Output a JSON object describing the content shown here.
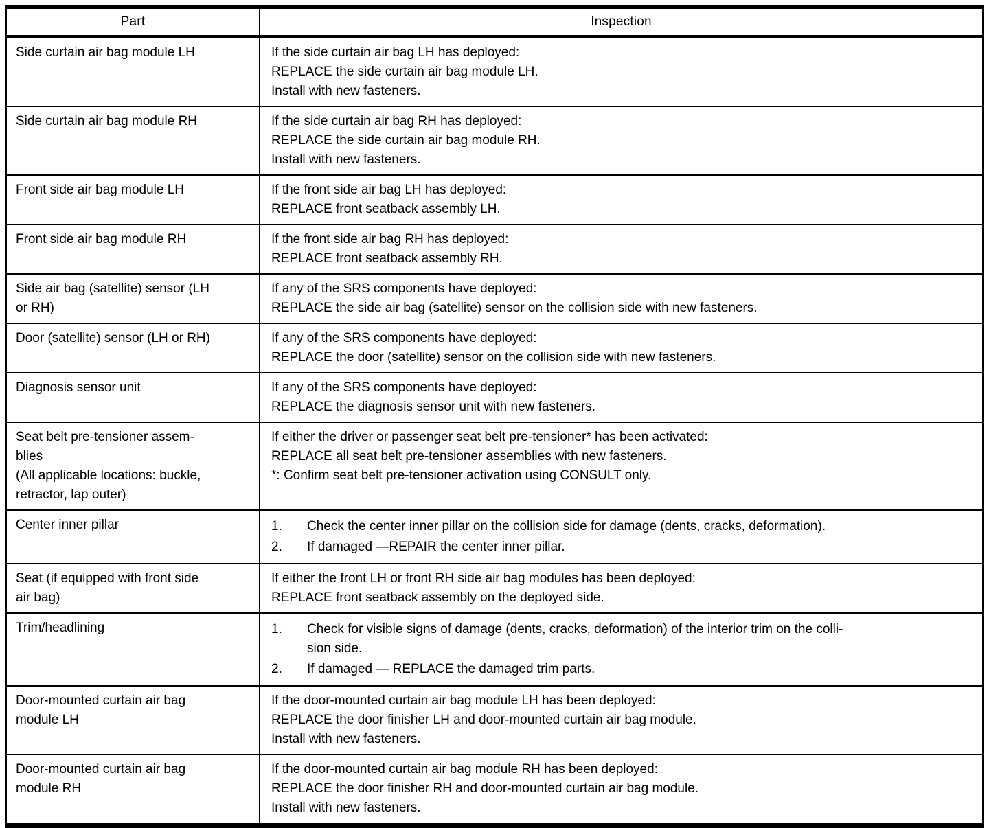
{
  "table": {
    "columns": {
      "part": "Part",
      "inspection": "Inspection"
    },
    "rows": [
      {
        "part": "Side curtain air bag module LH",
        "inspection": {
          "type": "lines",
          "lines": [
            "If the side curtain air bag LH has deployed:",
            "REPLACE the side curtain air bag module LH.",
            "Install with new fasteners."
          ]
        }
      },
      {
        "part": "Side curtain air bag module RH",
        "inspection": {
          "type": "lines",
          "lines": [
            "If the side curtain air bag RH has deployed:",
            "REPLACE the side curtain air bag module RH.",
            "Install with new fasteners."
          ]
        }
      },
      {
        "part": "Front side air bag module LH",
        "inspection": {
          "type": "lines",
          "lines": [
            "If the front side air bag LH has deployed:",
            "REPLACE front seatback assembly LH."
          ]
        }
      },
      {
        "part": "Front side air bag module RH",
        "inspection": {
          "type": "lines",
          "lines": [
            "If the front side air bag RH has deployed:",
            "REPLACE front seatback assembly RH."
          ]
        }
      },
      {
        "part": "Side air bag (satellite) sensor (LH\nor RH)",
        "inspection": {
          "type": "lines",
          "lines": [
            "If any of the SRS components have deployed:",
            "REPLACE the side air bag (satellite) sensor on the collision side with new fasteners."
          ]
        }
      },
      {
        "part": "Door (satellite) sensor (LH or RH)",
        "inspection": {
          "type": "lines",
          "lines": [
            "If any of the SRS components have deployed:",
            "REPLACE the door (satellite) sensor on the collision side with new fasteners."
          ]
        }
      },
      {
        "part": "Diagnosis sensor unit",
        "inspection": {
          "type": "lines",
          "lines": [
            "If any of the SRS components have deployed:",
            "REPLACE the diagnosis sensor unit with new fasteners."
          ]
        }
      },
      {
        "part": "Seat belt pre-tensioner assem-\nblies\n(All applicable locations: buckle,\nretractor, lap outer)",
        "inspection": {
          "type": "lines",
          "lines": [
            "If either the driver or passenger seat belt pre-tensioner* has been activated:",
            "REPLACE all seat belt pre-tensioner assemblies with new fasteners.",
            "*: Confirm seat belt pre-tensioner activation using CONSULT only."
          ]
        }
      },
      {
        "part": "Center inner pillar",
        "inspection": {
          "type": "numbered",
          "items": [
            "Check the center inner pillar on the collision side for damage (dents, cracks, deformation).",
            "If damaged —REPAIR the center inner pillar."
          ]
        }
      },
      {
        "part": "Seat (if equipped with front side\nair bag)",
        "inspection": {
          "type": "lines",
          "lines": [
            "If either the front LH or front RH side air bag modules has been deployed:",
            "REPLACE front seatback assembly on the deployed side."
          ]
        }
      },
      {
        "part": "Trim/headlining",
        "inspection": {
          "type": "numbered",
          "items": [
            "Check for visible signs of damage (dents, cracks, deformation) of the interior trim on the colli-\nsion side.",
            "If damaged — REPLACE the damaged trim parts."
          ]
        }
      },
      {
        "part": "Door-mounted curtain air bag\nmodule LH",
        "inspection": {
          "type": "lines",
          "lines": [
            "If the door-mounted curtain air bag module LH has been deployed:",
            "REPLACE the door finisher LH and door-mounted curtain air bag module.",
            "Install with new fasteners."
          ]
        }
      },
      {
        "part": "Door-mounted curtain air bag\nmodule RH",
        "inspection": {
          "type": "lines",
          "lines": [
            "If the door-mounted curtain air bag module RH has been deployed:",
            "REPLACE the door finisher RH and door-mounted curtain air bag module.",
            "Install with new fasteners."
          ]
        }
      }
    ]
  }
}
